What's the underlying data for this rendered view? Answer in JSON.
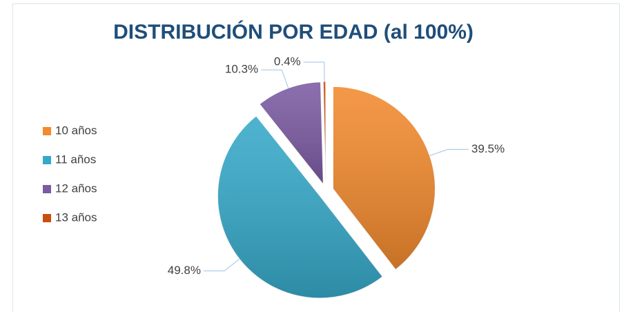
{
  "chart_data": {
    "type": "pie",
    "title": "DISTRIBUCIÓN POR EDAD (al 100%)",
    "categories": [
      "10 años",
      "11 años",
      "12 años",
      "13 años"
    ],
    "values": [
      39.5,
      49.8,
      10.3,
      0.4
    ],
    "value_labels": [
      "39.5%",
      "49.8%",
      "10.3%",
      "0.4%"
    ],
    "colors": [
      "#f28a2e",
      "#36a9c9",
      "#7b5ba3",
      "#c6500f"
    ],
    "legend": "left"
  }
}
